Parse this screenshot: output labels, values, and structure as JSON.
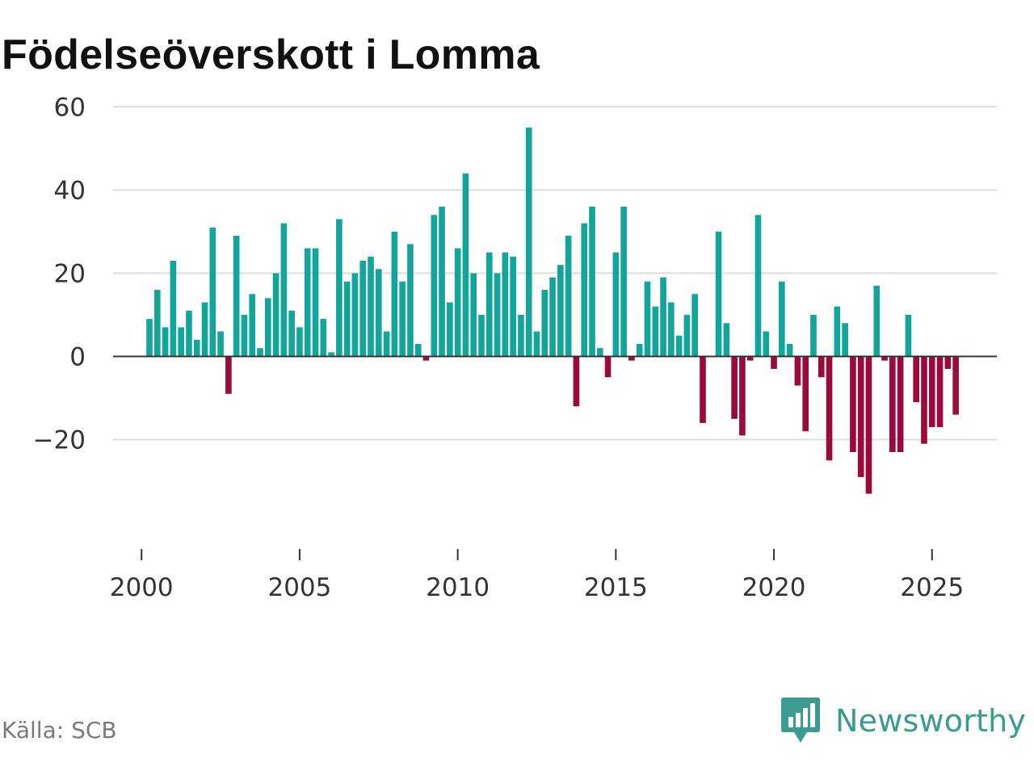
{
  "chart_data": {
    "type": "bar",
    "title": "Födelseöverskott i Lomma",
    "xlabel": "",
    "ylabel": "",
    "x_tick_labels": [
      "2000",
      "2005",
      "2010",
      "2015",
      "2020",
      "2025"
    ],
    "y_tick_labels": [
      "60",
      "40",
      "20",
      "0",
      "−20"
    ],
    "y_ticks": [
      60,
      40,
      20,
      0,
      -20
    ],
    "ylim": [
      -36,
      62
    ],
    "xlim": [
      1999.1,
      2027.05
    ],
    "grid": true,
    "x_start": 2000.25,
    "x_step": 0.25,
    "values": [
      9,
      16,
      7,
      23,
      7,
      11,
      4,
      13,
      31,
      6,
      -9,
      29,
      10,
      15,
      2,
      14,
      20,
      32,
      11,
      7,
      26,
      26,
      9,
      1,
      33,
      18,
      20,
      23,
      24,
      21,
      6,
      30,
      18,
      27,
      3,
      -1,
      34,
      36,
      13,
      26,
      44,
      20,
      10,
      25,
      20,
      25,
      24,
      10,
      55,
      6,
      16,
      19,
      22,
      29,
      -12,
      32,
      36,
      2,
      -5,
      25,
      36,
      -1,
      3,
      18,
      12,
      19,
      13,
      5,
      10,
      15,
      -16,
      0,
      30,
      8,
      -15,
      -19,
      -1,
      34,
      6,
      -3,
      18,
      3,
      -7,
      -18,
      10,
      -5,
      -25,
      12,
      8,
      -23,
      -29,
      -33,
      17,
      -1,
      -23,
      -23,
      10,
      -11,
      -21,
      -17,
      -17,
      -3,
      -14
    ],
    "positive_color": "#14a59a",
    "negative_color": "#9b0a3c"
  },
  "footer": {
    "source": "Källa: SCB",
    "brand": "Newsworthy",
    "brand_color": "#3a9b91"
  }
}
